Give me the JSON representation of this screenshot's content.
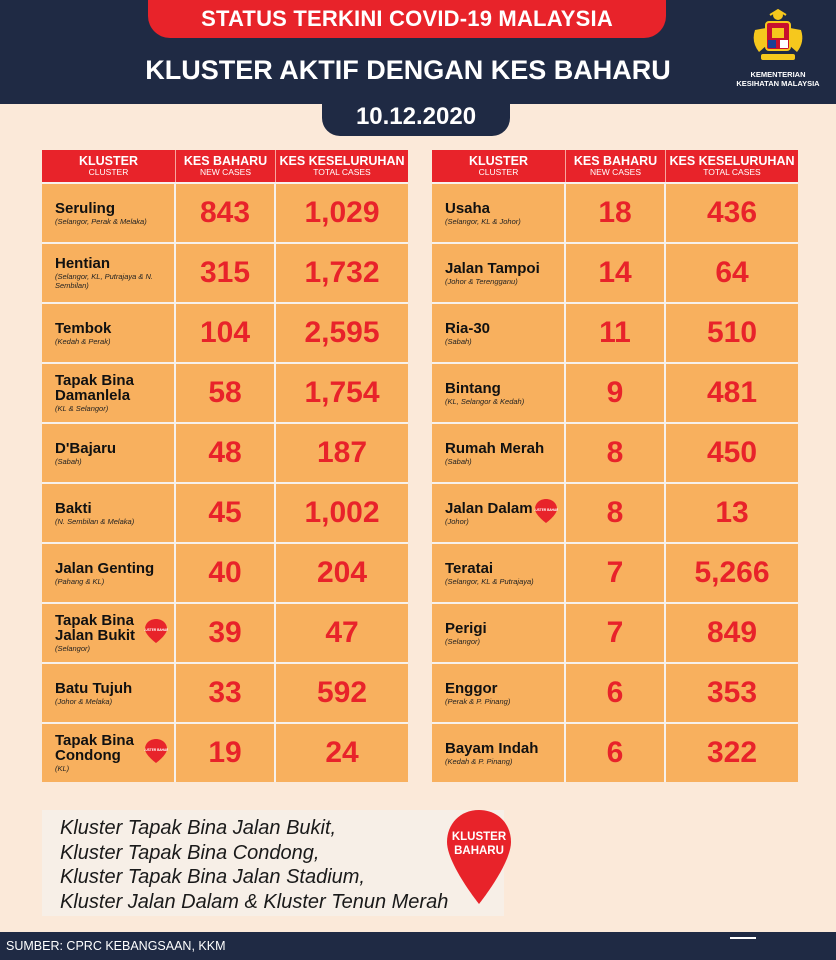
{
  "header": {
    "status_title": "STATUS TERKINI COVID-19 MALAYSIA",
    "main_title": "KLUSTER AKTIF DENGAN KES BAHARU",
    "date": "10.12.2020",
    "ministry": "KEMENTERIAN KESIHATAN MALAYSIA"
  },
  "columns": {
    "cluster": "KLUSTER",
    "cluster_sub": "CLUSTER",
    "new_cases": "KES BAHARU",
    "new_cases_sub": "NEW CASES",
    "total_cases": "KES KESELURUHAN",
    "total_cases_sub": "TOTAL CASES"
  },
  "badge_text": "KLUSTER BAHARU",
  "left_rows": [
    {
      "name": "Seruling",
      "location": "(Selangor, Perak & Melaka)",
      "new": "843",
      "total": "1,029",
      "new_cluster": false
    },
    {
      "name": "Hentian",
      "location": "(Selangor, KL, Putrajaya & N. Sembilan)",
      "new": "315",
      "total": "1,732",
      "new_cluster": false
    },
    {
      "name": "Tembok",
      "location": "(Kedah & Perak)",
      "new": "104",
      "total": "2,595",
      "new_cluster": false
    },
    {
      "name": "Tapak Bina Damanlela",
      "location": "(KL & Selangor)",
      "new": "58",
      "total": "1,754",
      "new_cluster": false
    },
    {
      "name": "D'Bajaru",
      "location": "(Sabah)",
      "new": "48",
      "total": "187",
      "new_cluster": false
    },
    {
      "name": "Bakti",
      "location": "(N. Sembilan & Melaka)",
      "new": "45",
      "total": "1,002",
      "new_cluster": false
    },
    {
      "name": "Jalan Genting",
      "location": "(Pahang & KL)",
      "new": "40",
      "total": "204",
      "new_cluster": false
    },
    {
      "name": "Tapak Bina Jalan Bukit",
      "location": "(Selangor)",
      "new": "39",
      "total": "47",
      "new_cluster": true
    },
    {
      "name": "Batu Tujuh",
      "location": "(Johor & Melaka)",
      "new": "33",
      "total": "592",
      "new_cluster": false
    },
    {
      "name": "Tapak Bina Condong",
      "location": "(KL)",
      "new": "19",
      "total": "24",
      "new_cluster": true
    }
  ],
  "right_rows": [
    {
      "name": "Usaha",
      "location": "(Selangor, KL & Johor)",
      "new": "18",
      "total": "436",
      "new_cluster": false
    },
    {
      "name": "Jalan Tampoi",
      "location": "(Johor & Terengganu)",
      "new": "14",
      "total": "64",
      "new_cluster": false
    },
    {
      "name": "Ria-30",
      "location": "(Sabah)",
      "new": "11",
      "total": "510",
      "new_cluster": false
    },
    {
      "name": "Bintang",
      "location": "(KL, Selangor & Kedah)",
      "new": "9",
      "total": "481",
      "new_cluster": false
    },
    {
      "name": "Rumah Merah",
      "location": "(Sabah)",
      "new": "8",
      "total": "450",
      "new_cluster": false
    },
    {
      "name": "Jalan Dalam",
      "location": "(Johor)",
      "new": "8",
      "total": "13",
      "new_cluster": true
    },
    {
      "name": "Teratai",
      "location": "(Selangor, KL & Putrajaya)",
      "new": "7",
      "total": "5,266",
      "new_cluster": false
    },
    {
      "name": "Perigi",
      "location": "(Selangor)",
      "new": "7",
      "total": "849",
      "new_cluster": false
    },
    {
      "name": "Enggor",
      "location": "(Perak & P. Pinang)",
      "new": "6",
      "total": "353",
      "new_cluster": false
    },
    {
      "name": "Bayam Indah",
      "location": "(Kedah & P. Pinang)",
      "new": "6",
      "total": "322",
      "new_cluster": false
    }
  ],
  "legend": {
    "lines": [
      "Kluster Tapak Bina Jalan Bukit,",
      "Kluster Tapak Bina Condong,",
      "Kluster Tapak Bina Jalan Stadium,",
      "Kluster Jalan Dalam & Kluster Tenun Merah"
    ],
    "badge_line1": "KLUSTER",
    "badge_line2": "BAHARU"
  },
  "footer": {
    "source": "SUMBER: CPRC KEBANGSAAN, KKM"
  },
  "colors": {
    "navy": "#1f2a44",
    "red": "#e8232a",
    "orange": "#f8b05e",
    "background": "#fbe9d9"
  },
  "icons": {
    "ministry_logo": "malaysia-coat-of-arms-icon",
    "new_cluster_pin": "map-pin-icon"
  }
}
